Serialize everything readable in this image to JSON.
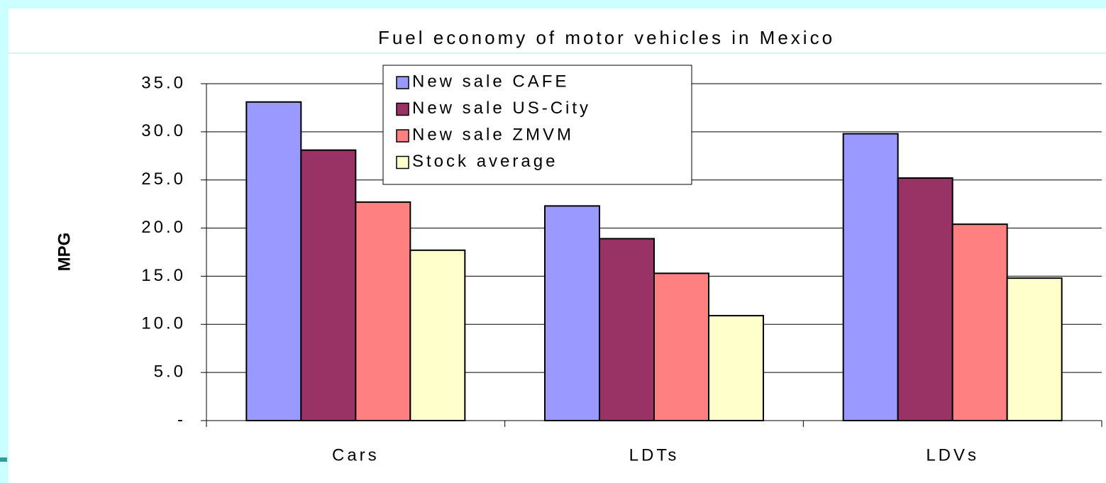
{
  "chart_data": {
    "type": "bar",
    "title": "Fuel economy of motor vehicles in Mexico",
    "y_label": "MPG",
    "categories": [
      "Cars",
      "LDTs",
      "LDVs"
    ],
    "series": [
      {
        "name": "New sale CAFE",
        "color": "#9999ff",
        "values": [
          33.1,
          22.3,
          29.8
        ]
      },
      {
        "name": "New sale US-City",
        "color": "#993366",
        "values": [
          28.1,
          18.9,
          25.2
        ]
      },
      {
        "name": "New sale ZMVM",
        "color": "#ff8080",
        "values": [
          22.7,
          15.3,
          20.4
        ]
      },
      {
        "name": "Stock average",
        "color": "#ffffcc",
        "values": [
          17.7,
          10.9,
          14.8
        ]
      }
    ],
    "ylim": [
      0,
      35
    ],
    "yticks": [
      {
        "value": 0,
        "label": "-"
      },
      {
        "value": 5,
        "label": "5.0"
      },
      {
        "value": 10,
        "label": "10.0"
      },
      {
        "value": 15,
        "label": "15.0"
      },
      {
        "value": 20,
        "label": "20.0"
      },
      {
        "value": 25,
        "label": "25.0"
      },
      {
        "value": 30,
        "label": "30.0"
      },
      {
        "value": 35,
        "label": "35.0"
      }
    ],
    "grid": true,
    "legend": "top"
  }
}
